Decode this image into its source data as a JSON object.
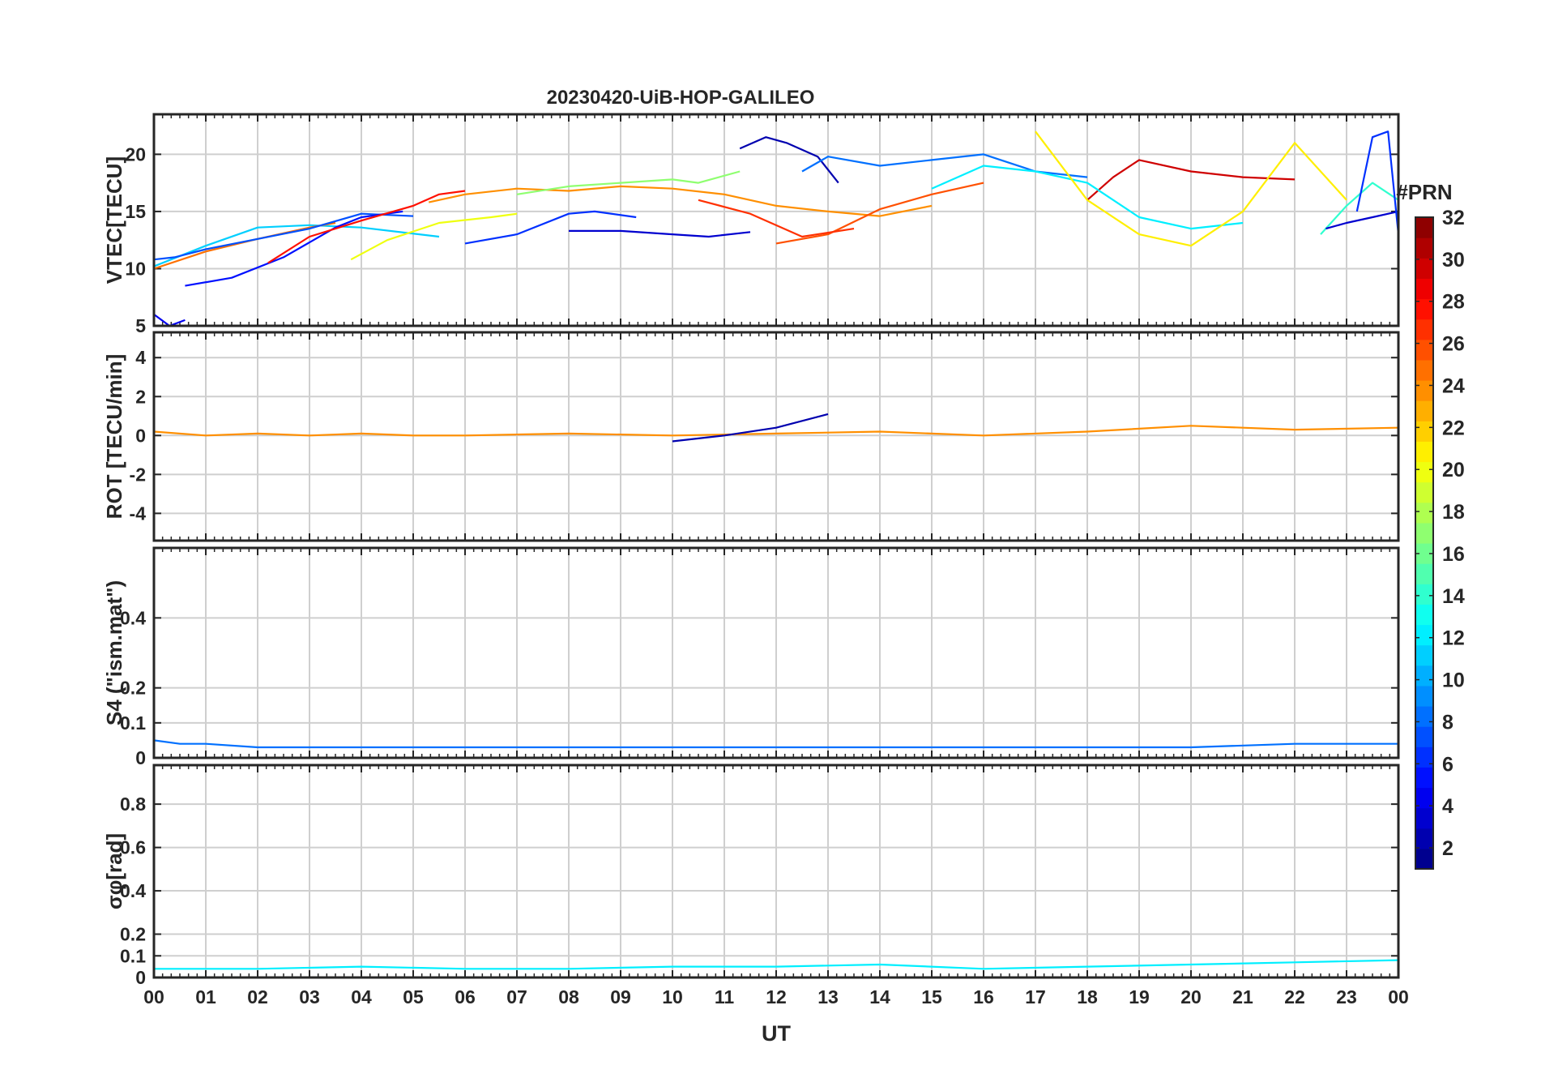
{
  "title": "20230420-UiB-HOP-GALILEO",
  "xlabel": "UT",
  "colorbar": {
    "label": "#PRN",
    "range": [
      1,
      32
    ],
    "ticks": [
      2,
      4,
      6,
      8,
      10,
      12,
      14,
      16,
      18,
      20,
      22,
      24,
      26,
      28,
      30,
      32
    ]
  },
  "chart_data": [
    {
      "type": "line",
      "panel": "VTEC",
      "ylabel": "VTEC[TECU]",
      "ylim": [
        5,
        23.5
      ],
      "yticks": [
        5,
        10,
        15,
        20
      ],
      "x_ticks": [
        "00",
        "01",
        "02",
        "03",
        "04",
        "05",
        "06",
        "07",
        "08",
        "09",
        "10",
        "11",
        "12",
        "13",
        "14",
        "15",
        "16",
        "17",
        "18",
        "19",
        "20",
        "21",
        "22",
        "23",
        "00"
      ],
      "grid": true,
      "series": [
        {
          "prn": 11,
          "x": [
            0.0,
            1.0,
            2.0,
            3.0,
            4.0,
            5.5
          ],
          "y": [
            10.2,
            12.0,
            13.6,
            13.8,
            13.6,
            12.8
          ]
        },
        {
          "prn": 25,
          "x": [
            0.0,
            1.0,
            2.0,
            3.0,
            3.5
          ],
          "y": [
            10.0,
            11.5,
            12.6,
            13.6,
            14.0
          ]
        },
        {
          "prn": 7,
          "x": [
            0.0,
            0.4,
            1.0,
            2.0,
            3.0,
            4.0,
            5.0
          ],
          "y": [
            10.8,
            11.0,
            11.7,
            12.6,
            13.5,
            14.8,
            14.6
          ]
        },
        {
          "prn": 4,
          "x": [
            0.0,
            0.3,
            0.6
          ],
          "y": [
            6.0,
            5.0,
            5.5
          ]
        },
        {
          "prn": 5,
          "x": [
            0.6,
            1.5,
            2.5,
            3.5,
            4.0,
            4.8
          ],
          "y": [
            8.5,
            9.2,
            11.0,
            13.6,
            14.5,
            15.0
          ]
        },
        {
          "prn": 28,
          "x": [
            2.2,
            3.0,
            4.0,
            5.0,
            5.5,
            6.0
          ],
          "y": [
            10.5,
            12.8,
            14.2,
            15.5,
            16.5,
            16.8
          ]
        },
        {
          "prn": 24,
          "x": [
            5.3,
            6.0,
            7.0,
            8.0,
            9.0,
            10.0,
            11.0,
            12.0,
            13.0,
            14.0,
            15.0
          ],
          "y": [
            15.8,
            16.5,
            17.0,
            16.8,
            17.2,
            17.0,
            16.5,
            15.5,
            15.0,
            14.6,
            15.5
          ]
        },
        {
          "prn": 20,
          "x": [
            3.8,
            4.5,
            5.5,
            6.5,
            7.0
          ],
          "y": [
            10.8,
            12.5,
            14.0,
            14.5,
            14.8
          ]
        },
        {
          "prn": 17,
          "x": [
            7.0,
            8.0,
            9.0,
            10.0,
            10.5,
            11.3
          ],
          "y": [
            16.5,
            17.2,
            17.5,
            17.8,
            17.5,
            18.5
          ]
        },
        {
          "prn": 6,
          "x": [
            6.0,
            7.0,
            8.0,
            8.5,
            9.3
          ],
          "y": [
            12.2,
            13.0,
            14.8,
            15.0,
            14.5
          ]
        },
        {
          "prn": 3,
          "x": [
            8.0,
            9.0,
            10.0,
            10.7,
            11.5
          ],
          "y": [
            13.3,
            13.3,
            13.0,
            12.8,
            13.2
          ]
        },
        {
          "prn": 2,
          "x": [
            11.3,
            11.8,
            12.2,
            12.8,
            13.2
          ],
          "y": [
            20.5,
            21.5,
            21.0,
            19.8,
            17.5
          ]
        },
        {
          "prn": 8,
          "x": [
            12.5,
            13.0,
            14.0,
            15.0,
            16.0,
            17.0,
            18.0
          ],
          "y": [
            18.5,
            19.8,
            19.0,
            19.5,
            20.0,
            18.5,
            18.0
          ]
        },
        {
          "prn": 26,
          "x": [
            12.0,
            13.0,
            14.0,
            15.0,
            16.0
          ],
          "y": [
            12.2,
            13.0,
            15.2,
            16.5,
            17.5
          ]
        },
        {
          "prn": 27,
          "x": [
            10.5,
            11.5,
            12.5,
            13.5
          ],
          "y": [
            16.0,
            14.8,
            12.8,
            13.5
          ]
        },
        {
          "prn": 30,
          "x": [
            18.0,
            18.5,
            19.0,
            20.0,
            21.0,
            22.0
          ],
          "y": [
            16.0,
            18.0,
            19.5,
            18.5,
            18.0,
            17.8
          ]
        },
        {
          "prn": 12,
          "x": [
            15.0,
            16.0,
            17.0,
            18.0,
            19.0,
            20.0,
            21.0
          ],
          "y": [
            17.0,
            19.0,
            18.5,
            17.5,
            14.5,
            13.5,
            14.0
          ]
        },
        {
          "prn": 21,
          "x": [
            17.0,
            18.0,
            19.0,
            20.0,
            21.0,
            22.0,
            23.0
          ],
          "y": [
            22.0,
            16.0,
            13.0,
            12.0,
            15.0,
            21.0,
            16.0
          ]
        },
        {
          "prn": 14,
          "x": [
            22.5,
            23.0,
            23.5,
            24.0
          ],
          "y": [
            13.0,
            15.5,
            17.5,
            16.0
          ]
        },
        {
          "prn": 3,
          "x": [
            22.6,
            23.0,
            23.5,
            24.0
          ],
          "y": [
            13.5,
            14.0,
            14.5,
            15.0
          ]
        },
        {
          "prn": 6,
          "x": [
            23.2,
            23.5,
            23.8,
            24.0
          ],
          "y": [
            15.0,
            21.5,
            22.0,
            13.0
          ]
        }
      ]
    },
    {
      "type": "line",
      "panel": "ROT",
      "ylabel": "ROT [TECU/min]",
      "ylim": [
        -5.4,
        5.3
      ],
      "yticks": [
        -4,
        -2,
        0,
        2,
        4
      ],
      "grid": true,
      "series": [
        {
          "prn": 24,
          "x": [
            0,
            1,
            2,
            3,
            4,
            5,
            6,
            8,
            10,
            12,
            14,
            16,
            18,
            20,
            22,
            24
          ],
          "y": [
            0.2,
            0.0,
            0.1,
            0.0,
            0.1,
            0.0,
            0.0,
            0.1,
            0.0,
            0.1,
            0.2,
            0.0,
            0.2,
            0.5,
            0.3,
            0.4
          ]
        },
        {
          "prn": 2,
          "x": [
            10.0,
            11.0,
            12.0,
            13.0
          ],
          "y": [
            -0.3,
            0.0,
            0.4,
            1.1
          ]
        }
      ]
    },
    {
      "type": "line",
      "panel": "S4",
      "ylabel": "S4 (\"ism.mat\")",
      "ylim": [
        0,
        0.6
      ],
      "yticks": [
        0,
        0.1,
        0.2,
        0.4
      ],
      "grid": true,
      "series": [
        {
          "prn": 8,
          "x": [
            0.0,
            0.5,
            1.0,
            2.0,
            4.0,
            6.0,
            8.0,
            10.0,
            12.0,
            14.0,
            16.0,
            18.0,
            20.0,
            22.0,
            24.0
          ],
          "y": [
            0.05,
            0.04,
            0.04,
            0.03,
            0.03,
            0.03,
            0.03,
            0.03,
            0.03,
            0.03,
            0.03,
            0.03,
            0.03,
            0.04,
            0.04
          ]
        }
      ]
    },
    {
      "type": "line",
      "panel": "sigma_phi",
      "ylabel": "σφ[rad]",
      "ylim": [
        0,
        0.98
      ],
      "yticks": [
        0,
        0.1,
        0.2,
        0.4,
        0.6,
        0.8
      ],
      "grid": true,
      "series": [
        {
          "prn": 12,
          "x": [
            0,
            2,
            4,
            6,
            8,
            10,
            12,
            14,
            16,
            18,
            20,
            22,
            24
          ],
          "y": [
            0.04,
            0.04,
            0.05,
            0.04,
            0.04,
            0.05,
            0.05,
            0.06,
            0.04,
            0.05,
            0.06,
            0.07,
            0.08
          ]
        }
      ]
    }
  ]
}
